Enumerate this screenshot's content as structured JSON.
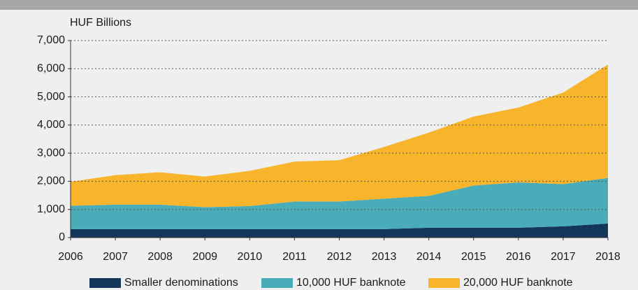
{
  "chart_data": {
    "type": "stacked-area",
    "y_axis_label": "HUF Billions",
    "x": [
      2006,
      2007,
      2008,
      2009,
      2010,
      2011,
      2012,
      2013,
      2014,
      2015,
      2016,
      2017,
      2018
    ],
    "xlim": [
      2006,
      2018
    ],
    "xticks": [
      2006,
      2007,
      2008,
      2009,
      2010,
      2011,
      2012,
      2013,
      2014,
      2015,
      2016,
      2017,
      2018
    ],
    "ylim": [
      0,
      7000
    ],
    "yticks": [
      0,
      {
        "value": 1000,
        "label": "1,000"
      },
      {
        "value": 2000,
        "label": "2,000"
      },
      {
        "value": 3000,
        "label": "3,000"
      },
      {
        "value": 4000,
        "label": "4,000"
      },
      {
        "value": 5000,
        "label": "5,000"
      },
      {
        "value": 6000,
        "label": "6,000"
      },
      {
        "value": 7000,
        "label": "7,000"
      }
    ],
    "grid": true,
    "legend": "bottom",
    "series": [
      {
        "name": "Smaller denominations",
        "color": "#14365b",
        "values": [
          300,
          300,
          300,
          300,
          300,
          300,
          300,
          300,
          350,
          350,
          350,
          400,
          500
        ]
      },
      {
        "name": "10,000 HUF banknote",
        "color": "#4aacb9",
        "values": [
          830,
          870,
          870,
          780,
          820,
          980,
          980,
          1080,
          1130,
          1500,
          1610,
          1500,
          1620
        ]
      },
      {
        "name": "20,000 HUF banknote",
        "color": "#f8b52c",
        "values": [
          850,
          1050,
          1150,
          1090,
          1250,
          1420,
          1470,
          1840,
          2250,
          2450,
          2660,
          3250,
          4030
        ]
      }
    ]
  }
}
